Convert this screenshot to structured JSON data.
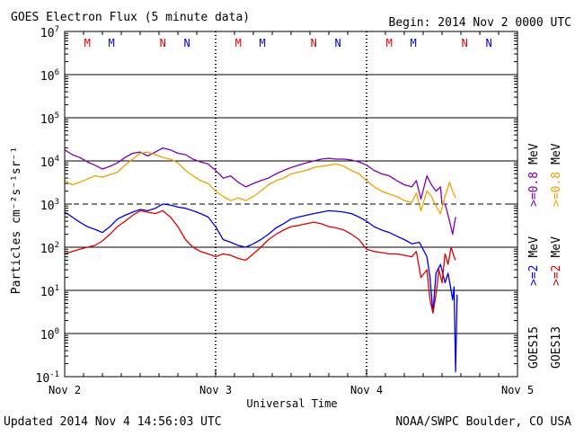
{
  "chart_data": {
    "type": "line",
    "title": "GOES Electron Flux (5 minute data)",
    "begin": "Begin: 2014 Nov 2 0000 UTC",
    "xlabel": "Universal Time",
    "ylabel": "Particles cm⁻²s⁻¹sr⁻¹",
    "footer_left": "Updated 2014 Nov  4 14:56:03 UTC",
    "footer_right": "NOAA/SWPC Boulder, CO USA",
    "x_ticks": [
      "Nov 2",
      "Nov 3",
      "Nov 4",
      "Nov 5"
    ],
    "xlim_days": [
      0,
      3
    ],
    "y_scale": "log",
    "ylim": [
      0.1,
      10000000
    ],
    "y_ticks": [
      {
        "base": "10",
        "exp": "-1",
        "value": 0.1
      },
      {
        "base": "10",
        "exp": "0",
        "value": 1
      },
      {
        "base": "10",
        "exp": "1",
        "value": 10
      },
      {
        "base": "10",
        "exp": "2",
        "value": 100
      },
      {
        "base": "10",
        "exp": "3",
        "value": 1000
      },
      {
        "base": "10",
        "exp": "4",
        "value": 10000
      },
      {
        "base": "10",
        "exp": "5",
        "value": 100000
      },
      {
        "base": "10",
        "exp": "6",
        "value": 1000000
      },
      {
        "base": "10",
        "exp": "7",
        "value": 10000000
      }
    ],
    "threshold": 1000,
    "grid": true,
    "markers": [
      {
        "label": "M",
        "day": 0.15,
        "color": "#dd0000"
      },
      {
        "label": "M",
        "day": 0.31,
        "color": "#0000dd"
      },
      {
        "label": "N",
        "day": 0.65,
        "color": "#dd0000"
      },
      {
        "label": "N",
        "day": 0.81,
        "color": "#0000dd"
      },
      {
        "label": "M",
        "day": 1.15,
        "color": "#dd0000"
      },
      {
        "label": "M",
        "day": 1.31,
        "color": "#0000dd"
      },
      {
        "label": "N",
        "day": 1.65,
        "color": "#dd0000"
      },
      {
        "label": "N",
        "day": 1.81,
        "color": "#0000dd"
      },
      {
        "label": "M",
        "day": 2.15,
        "color": "#dd0000"
      },
      {
        "label": "M",
        "day": 2.31,
        "color": "#0000dd"
      },
      {
        "label": "N",
        "day": 2.65,
        "color": "#dd0000"
      },
      {
        "label": "N",
        "day": 2.81,
        "color": "#0000dd"
      }
    ],
    "legend_right": [
      {
        "parts": [
          {
            "text": ">=0.8",
            "color": "#7b00b0"
          },
          {
            "text": "MeV",
            "color": "#000000"
          }
        ]
      },
      {
        "parts": [
          {
            "text": ">=0.8",
            "color": "#f0a000"
          },
          {
            "text": "MeV",
            "color": "#000000"
          }
        ]
      },
      {
        "parts": [
          {
            "text": ">=2",
            "color": "#0000dd"
          },
          {
            "text": "MeV",
            "color": "#000000"
          }
        ]
      },
      {
        "parts": [
          {
            "text": ">=2",
            "color": "#dd0000"
          },
          {
            "text": "MeV",
            "color": "#000000"
          }
        ]
      },
      {
        "parts": [
          {
            "text": "GOES15",
            "color": "#000000"
          }
        ]
      },
      {
        "parts": [
          {
            "text": "GOES13",
            "color": "#000000"
          }
        ]
      }
    ],
    "series": [
      {
        "name": "GOES15 >=0.8 MeV",
        "color": "#7b00b0",
        "x": [
          0.0,
          0.05,
          0.1,
          0.15,
          0.2,
          0.25,
          0.3,
          0.35,
          0.4,
          0.45,
          0.5,
          0.55,
          0.6,
          0.65,
          0.7,
          0.75,
          0.8,
          0.85,
          0.9,
          0.95,
          1.0,
          1.05,
          1.1,
          1.15,
          1.2,
          1.25,
          1.3,
          1.35,
          1.4,
          1.45,
          1.5,
          1.55,
          1.6,
          1.65,
          1.7,
          1.75,
          1.8,
          1.85,
          1.9,
          1.95,
          2.0,
          2.05,
          2.1,
          2.15,
          2.2,
          2.25,
          2.3,
          2.33,
          2.36,
          2.4,
          2.43,
          2.46,
          2.49,
          2.5,
          2.52,
          2.55,
          2.57,
          2.59
        ],
        "y": [
          18000,
          14000,
          12000,
          9500,
          8000,
          6500,
          7500,
          9000,
          12000,
          15000,
          16000,
          13000,
          16000,
          20000,
          18000,
          15000,
          14000,
          11000,
          9500,
          8500,
          6000,
          4000,
          4500,
          3200,
          2500,
          3000,
          3500,
          4000,
          5000,
          6000,
          7000,
          8000,
          9000,
          10000,
          11000,
          11500,
          11000,
          11000,
          10500,
          9500,
          8000,
          6000,
          5000,
          4500,
          3500,
          2800,
          2500,
          3500,
          1300,
          4500,
          2800,
          2000,
          2500,
          1000,
          1000,
          400,
          200,
          500
        ]
      },
      {
        "name": "GOES13 >=0.8 MeV",
        "color": "#f0a000",
        "x": [
          0.0,
          0.05,
          0.1,
          0.15,
          0.2,
          0.25,
          0.3,
          0.35,
          0.4,
          0.45,
          0.5,
          0.55,
          0.6,
          0.65,
          0.7,
          0.75,
          0.8,
          0.85,
          0.9,
          0.95,
          1.0,
          1.05,
          1.1,
          1.15,
          1.2,
          1.25,
          1.3,
          1.35,
          1.4,
          1.45,
          1.5,
          1.55,
          1.6,
          1.65,
          1.7,
          1.75,
          1.8,
          1.85,
          1.9,
          1.95,
          2.0,
          2.05,
          2.1,
          2.15,
          2.2,
          2.25,
          2.3,
          2.33,
          2.36,
          2.4,
          2.43,
          2.46,
          2.49,
          2.52,
          2.55,
          2.57,
          2.59
        ],
        "y": [
          3500,
          2800,
          3200,
          3800,
          4500,
          4200,
          4800,
          5500,
          8000,
          11000,
          15000,
          16000,
          14000,
          12000,
          11000,
          9000,
          6000,
          4500,
          3500,
          3000,
          2000,
          1500,
          1200,
          1400,
          1200,
          1500,
          2000,
          2800,
          3500,
          4000,
          5000,
          5500,
          6000,
          7000,
          7500,
          8000,
          8500,
          7500,
          6000,
          5000,
          3500,
          2500,
          2000,
          1700,
          1500,
          1200,
          1100,
          1800,
          700,
          2000,
          1500,
          900,
          600,
          1500,
          3200,
          2000,
          1400
        ]
      },
      {
        "name": "GOES15 >=2 MeV",
        "color": "#0000dd",
        "x": [
          0.0,
          0.05,
          0.1,
          0.15,
          0.2,
          0.25,
          0.3,
          0.35,
          0.4,
          0.45,
          0.5,
          0.55,
          0.6,
          0.65,
          0.7,
          0.75,
          0.8,
          0.85,
          0.9,
          0.95,
          1.0,
          1.05,
          1.1,
          1.15,
          1.2,
          1.25,
          1.3,
          1.35,
          1.4,
          1.45,
          1.5,
          1.55,
          1.6,
          1.65,
          1.7,
          1.75,
          1.8,
          1.85,
          1.9,
          1.95,
          2.0,
          2.05,
          2.1,
          2.15,
          2.2,
          2.25,
          2.3,
          2.35,
          2.4,
          2.42,
          2.44,
          2.46,
          2.49,
          2.52,
          2.54,
          2.56,
          2.57,
          2.58,
          2.59,
          2.6
        ],
        "y": [
          650,
          500,
          380,
          300,
          260,
          220,
          300,
          450,
          550,
          650,
          750,
          700,
          800,
          1000,
          950,
          850,
          800,
          700,
          600,
          500,
          300,
          150,
          130,
          110,
          100,
          120,
          150,
          200,
          280,
          350,
          450,
          500,
          550,
          600,
          650,
          700,
          680,
          650,
          600,
          500,
          400,
          300,
          250,
          220,
          180,
          150,
          120,
          130,
          60,
          20,
          3,
          25,
          40,
          15,
          25,
          10,
          6,
          12,
          0.13,
          8
        ]
      },
      {
        "name": "GOES13 >=2 MeV",
        "color": "#dd0000",
        "x": [
          0.0,
          0.05,
          0.1,
          0.15,
          0.2,
          0.25,
          0.3,
          0.35,
          0.4,
          0.45,
          0.5,
          0.55,
          0.6,
          0.65,
          0.7,
          0.75,
          0.8,
          0.85,
          0.9,
          0.95,
          1.0,
          1.05,
          1.1,
          1.15,
          1.2,
          1.25,
          1.3,
          1.35,
          1.4,
          1.45,
          1.5,
          1.55,
          1.6,
          1.65,
          1.7,
          1.75,
          1.8,
          1.85,
          1.9,
          1.95,
          2.0,
          2.05,
          2.1,
          2.15,
          2.2,
          2.25,
          2.3,
          2.33,
          2.36,
          2.4,
          2.42,
          2.44,
          2.46,
          2.48,
          2.5,
          2.52,
          2.54,
          2.56,
          2.58,
          2.59
        ],
        "y": [
          70,
          80,
          90,
          100,
          110,
          140,
          200,
          300,
          400,
          550,
          700,
          650,
          600,
          700,
          500,
          300,
          150,
          100,
          80,
          70,
          60,
          70,
          65,
          55,
          50,
          70,
          100,
          150,
          200,
          250,
          300,
          320,
          350,
          380,
          350,
          300,
          280,
          250,
          200,
          150,
          90,
          80,
          75,
          70,
          70,
          65,
          60,
          80,
          20,
          30,
          6,
          3,
          8,
          30,
          15,
          70,
          40,
          100,
          60,
          50
        ]
      }
    ]
  }
}
